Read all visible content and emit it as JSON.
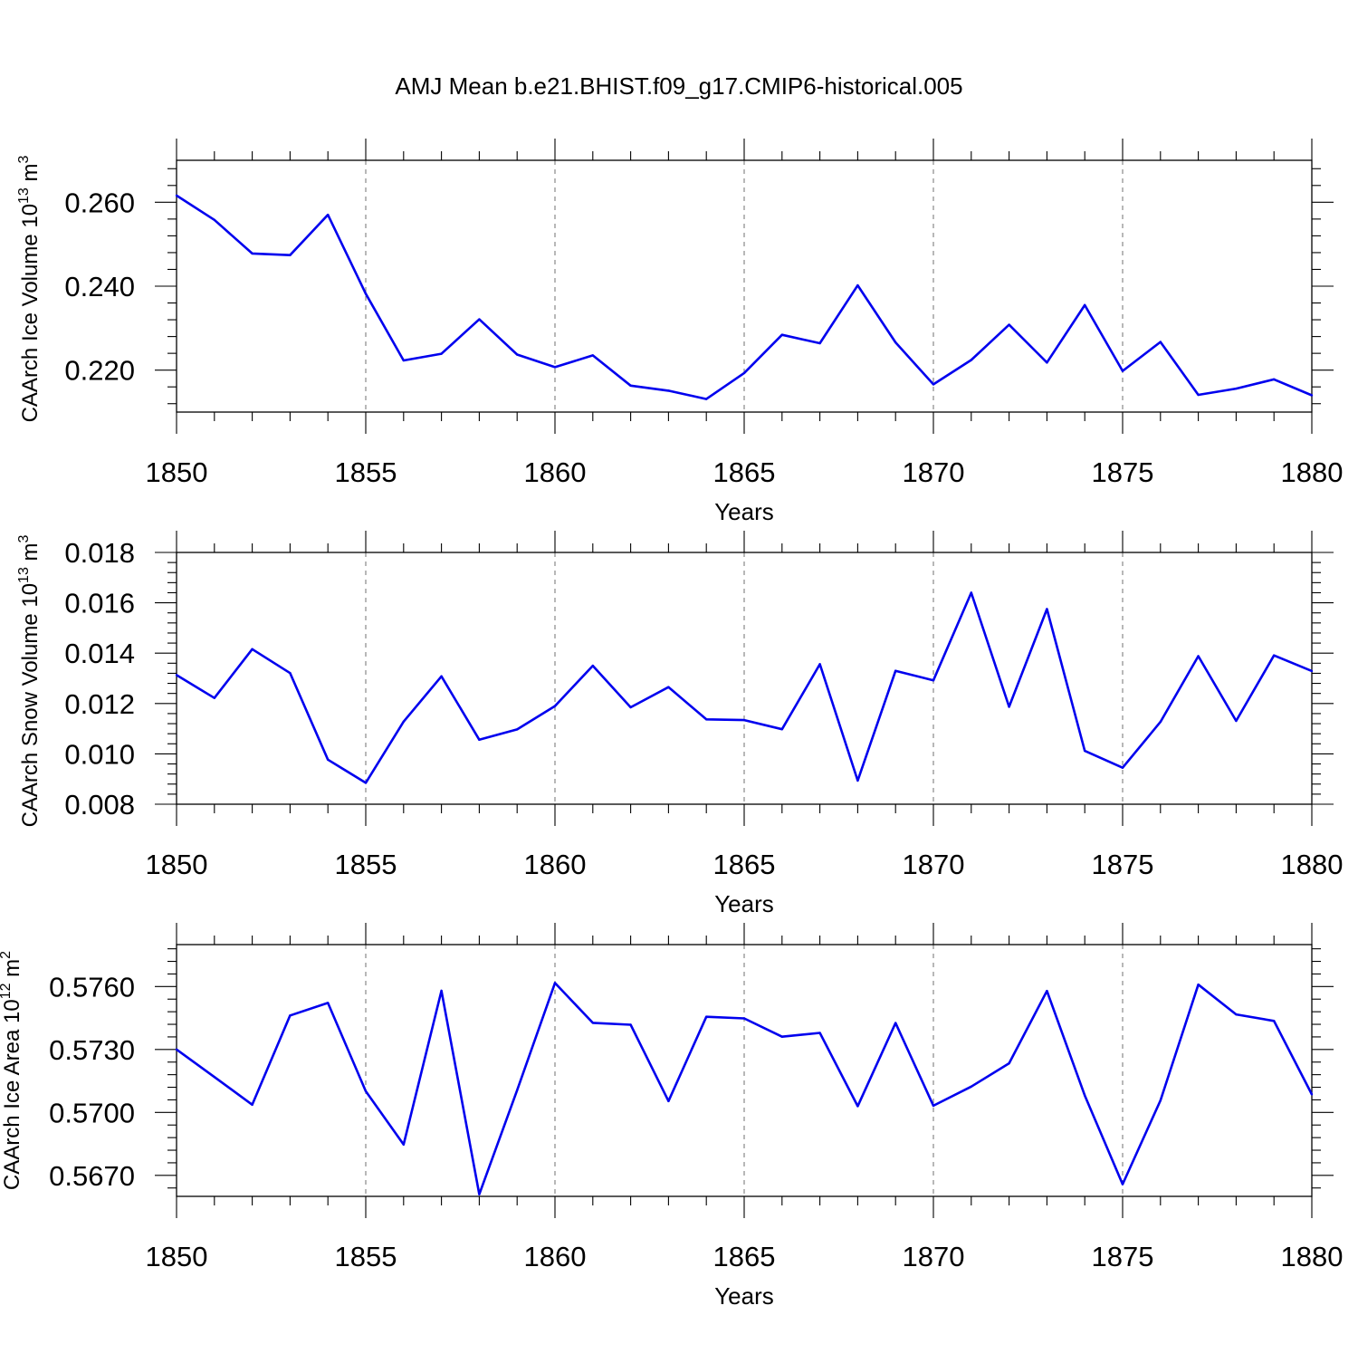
{
  "figure": {
    "title": "AMJ Mean b.e21.BHIST.f09_g17.CMIP6-historical.005"
  },
  "chart_data": [
    {
      "type": "line",
      "title": "",
      "xlabel": "Years",
      "ylabel": "CAArch Ice Volume 10",
      "ylabel_exponent": "13",
      "ylabel_unit": " m",
      "ylabel_unit_exponent": "3",
      "xlim": [
        1850,
        1880
      ],
      "ylim": [
        0.21,
        0.27
      ],
      "xticks": [
        1850,
        1855,
        1860,
        1865,
        1870,
        1875,
        1880
      ],
      "xtick_labels": [
        "1850",
        "1855",
        "1860",
        "1865",
        "1870",
        "1875",
        "1880"
      ],
      "yticks": [
        0.22,
        0.24,
        0.26
      ],
      "ytick_labels": [
        "0.220",
        "0.240",
        "0.260"
      ],
      "grid": "vertical dashed at major x ticks",
      "color": "#0000ee",
      "x": [
        1850,
        1851,
        1852,
        1853,
        1854,
        1855,
        1856,
        1857,
        1858,
        1859,
        1860,
        1861,
        1862,
        1863,
        1864,
        1865,
        1866,
        1867,
        1868,
        1869,
        1870,
        1871,
        1872,
        1873,
        1874,
        1875,
        1876,
        1877,
        1878,
        1879,
        1880
      ],
      "y": [
        0.2616,
        0.2558,
        0.2478,
        0.2474,
        0.257,
        0.2382,
        0.2223,
        0.2239,
        0.2321,
        0.2237,
        0.2207,
        0.2235,
        0.2163,
        0.2151,
        0.2131,
        0.2193,
        0.2284,
        0.2264,
        0.2402,
        0.2266,
        0.2166,
        0.2224,
        0.2308,
        0.2218,
        0.2355,
        0.2198,
        0.2267,
        0.2141,
        0.2156,
        0.2178,
        0.214
      ]
    },
    {
      "type": "line",
      "title": "",
      "xlabel": "Years",
      "ylabel": "CAArch Snow Volume 10",
      "ylabel_exponent": "13",
      "ylabel_unit": " m",
      "ylabel_unit_exponent": "3",
      "xlim": [
        1850,
        1880
      ],
      "ylim": [
        0.008,
        0.018
      ],
      "xticks": [
        1850,
        1855,
        1860,
        1865,
        1870,
        1875,
        1880
      ],
      "xtick_labels": [
        "1850",
        "1855",
        "1860",
        "1865",
        "1870",
        "1875",
        "1880"
      ],
      "yticks": [
        0.008,
        0.01,
        0.012,
        0.014,
        0.016,
        0.018
      ],
      "ytick_labels": [
        "0.008",
        "0.010",
        "0.012",
        "0.014",
        "0.016",
        "0.018"
      ],
      "grid": "vertical dashed at major x ticks",
      "color": "#0000ee",
      "x": [
        1850,
        1851,
        1852,
        1853,
        1854,
        1855,
        1856,
        1857,
        1858,
        1859,
        1860,
        1861,
        1862,
        1863,
        1864,
        1865,
        1866,
        1867,
        1868,
        1869,
        1870,
        1871,
        1872,
        1873,
        1874,
        1875,
        1876,
        1877,
        1878,
        1879,
        1880
      ],
      "y": [
        0.01313,
        0.01222,
        0.01416,
        0.01321,
        0.00977,
        0.00885,
        0.01128,
        0.01308,
        0.01056,
        0.01097,
        0.0119,
        0.0135,
        0.01185,
        0.01265,
        0.01137,
        0.01134,
        0.01098,
        0.01356,
        0.00894,
        0.0133,
        0.01292,
        0.0164,
        0.01187,
        0.01575,
        0.01012,
        0.00945,
        0.01127,
        0.01388,
        0.01131,
        0.01391,
        0.01329
      ]
    },
    {
      "type": "line",
      "title": "",
      "xlabel": "Years",
      "ylabel": "CAArch Ice Area 10",
      "ylabel_exponent": "12",
      "ylabel_unit": " m",
      "ylabel_unit_exponent": "2",
      "xlim": [
        1850,
        1880
      ],
      "ylim": [
        0.566,
        0.578
      ],
      "xticks": [
        1850,
        1855,
        1860,
        1865,
        1870,
        1875,
        1880
      ],
      "xtick_labels": [
        "1850",
        "1855",
        "1860",
        "1865",
        "1870",
        "1875",
        "1880"
      ],
      "yticks": [
        0.567,
        0.57,
        0.573,
        0.576
      ],
      "ytick_labels": [
        "0.5670",
        "0.5700",
        "0.5730",
        "0.5760"
      ],
      "grid": "vertical dashed at major x ticks",
      "color": "#0000ee",
      "x": [
        1850,
        1851,
        1852,
        1853,
        1854,
        1855,
        1856,
        1857,
        1858,
        1859,
        1860,
        1861,
        1862,
        1863,
        1864,
        1865,
        1866,
        1867,
        1868,
        1869,
        1870,
        1871,
        1872,
        1873,
        1874,
        1875,
        1876,
        1877,
        1878,
        1879,
        1880
      ],
      "y": [
        0.573,
        0.57169,
        0.57037,
        0.57462,
        0.57522,
        0.57101,
        0.56847,
        0.5758,
        0.5661,
        0.57106,
        0.57617,
        0.57427,
        0.57418,
        0.57054,
        0.57456,
        0.57448,
        0.57361,
        0.57379,
        0.5703,
        0.57426,
        0.57032,
        0.57123,
        0.57234,
        0.57579,
        0.57081,
        0.56658,
        0.57057,
        0.57609,
        0.57467,
        0.57436,
        0.57086
      ]
    }
  ]
}
